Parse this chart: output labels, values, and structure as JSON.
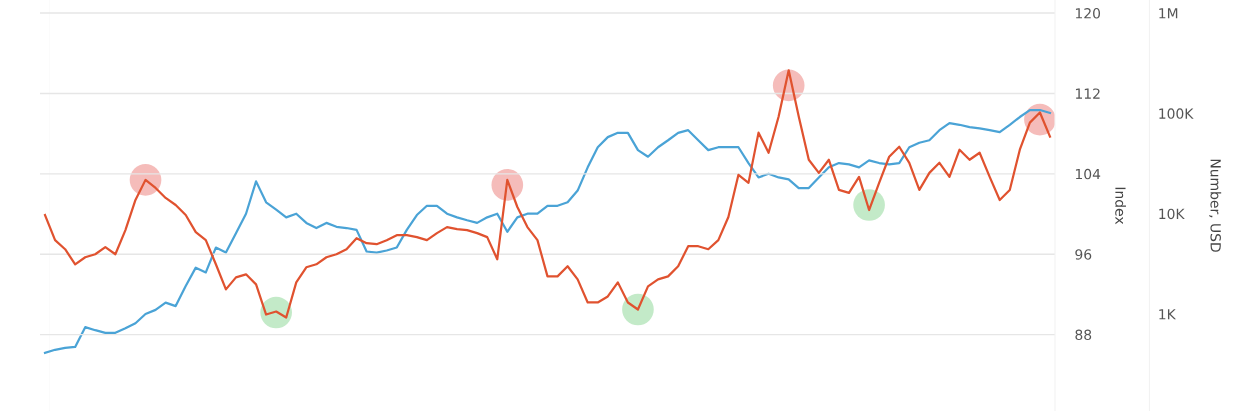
{
  "chart_data": {
    "type": "line",
    "categories": [
      null,
      null,
      null,
      null,
      null,
      null,
      null,
      null,
      null,
      null,
      null,
      null,
      null,
      null,
      null,
      null,
      null,
      null,
      null,
      null,
      null,
      null,
      null,
      null,
      null,
      null,
      null,
      null,
      null,
      null,
      null,
      null,
      null,
      null,
      null,
      null,
      null,
      null,
      null,
      null,
      null,
      null,
      null,
      null,
      null,
      null,
      null,
      null,
      null,
      null,
      null,
      null,
      null,
      null,
      null,
      null,
      null,
      null,
      null,
      null,
      null,
      null,
      null,
      null,
      null,
      null,
      null,
      null,
      null,
      null,
      null,
      null,
      null,
      null,
      null,
      null,
      null,
      null,
      null,
      null,
      null,
      null,
      null,
      null,
      null,
      null,
      null,
      null,
      null,
      null,
      null,
      null,
      null,
      null,
      null,
      null,
      null,
      null,
      null,
      null,
      null
    ],
    "ylabel": "Index",
    "y2label": "Number, USD",
    "ylim": [
      80.4,
      121.3
    ],
    "yticks": [
      88,
      96,
      104,
      112,
      120
    ],
    "y2lim": [
      108,
      1350000
    ],
    "y2ticks": [
      {
        "value": 1000,
        "label": "1K"
      },
      {
        "value": 10000,
        "label": "10K"
      },
      {
        "value": 100000,
        "label": "100K"
      },
      {
        "value": 1000000,
        "label": "1M"
      }
    ],
    "log": "y2",
    "grid": "y",
    "legend": false,
    "tick_labels": "y",
    "series": [
      {
        "color": "#4aa3d6",
        "axis": "y2",
        "values": [
          410,
          440,
          460,
          470,
          740,
          690,
          650,
          650,
          720,
          810,
          1000,
          1100,
          1300,
          1200,
          1900,
          2900,
          2600,
          4600,
          4100,
          6400,
          10000,
          21000,
          13000,
          11000,
          9200,
          10000,
          8100,
          7200,
          8100,
          7400,
          7200,
          6900,
          4200,
          4100,
          4300,
          4600,
          6900,
          9700,
          12000,
          12000,
          10000,
          9200,
          8600,
          8100,
          9200,
          10000,
          6600,
          9200,
          10000,
          10000,
          12000,
          12000,
          13000,
          17000,
          29000,
          46000,
          58000,
          64000,
          64000,
          43000,
          37000,
          46000,
          54000,
          64000,
          68000,
          54000,
          43000,
          46000,
          46000,
          46000,
          32000,
          23000,
          25000,
          23000,
          22000,
          18000,
          18000,
          23000,
          29000,
          32000,
          31000,
          29000,
          34000,
          32000,
          31000,
          32000,
          46000,
          51000,
          54000,
          68000,
          80000,
          77000,
          73000,
          71000,
          68000,
          65000,
          77000,
          92000,
          108000,
          108000,
          101000
        ]
      },
      {
        "color": "#e0522f",
        "values": [
          99.9,
          97.4,
          96.5,
          95.0,
          95.7,
          96.0,
          96.7,
          96.0,
          98.4,
          101.4,
          103.4,
          102.6,
          101.6,
          100.9,
          99.9,
          98.2,
          97.4,
          95.0,
          92.5,
          93.7,
          94.0,
          93.0,
          90.0,
          90.3,
          89.7,
          93.2,
          94.7,
          95.0,
          95.7,
          96.0,
          96.5,
          97.6,
          97.1,
          97.0,
          97.4,
          97.9,
          97.9,
          97.7,
          97.4,
          98.1,
          98.7,
          98.5,
          98.4,
          98.1,
          97.7,
          95.5,
          103.4,
          100.7,
          98.7,
          97.4,
          93.8,
          93.8,
          94.8,
          93.5,
          91.2,
          91.2,
          91.8,
          93.2,
          91.2,
          90.5,
          92.8,
          93.5,
          93.8,
          94.8,
          96.8,
          96.8,
          96.5,
          97.4,
          99.7,
          103.9,
          103.1,
          108.1,
          106.1,
          109.7,
          114.3,
          109.7,
          105.4,
          104.1,
          105.4,
          102.4,
          102.1,
          103.7,
          100.4,
          103.1,
          105.7,
          106.7,
          105.1,
          102.4,
          104.1,
          105.1,
          103.7,
          106.4,
          105.4,
          106.1,
          103.7,
          101.4,
          102.4,
          106.4,
          109.1,
          110.1,
          107.7
        ]
      },
      {
        "type": "scatter",
        "color": "#ef8f8c",
        "values": [
          null,
          null,
          null,
          null,
          null,
          null,
          null,
          null,
          null,
          null,
          103.4,
          null,
          null,
          null,
          null,
          null,
          null,
          null,
          null,
          null,
          null,
          null,
          null,
          null,
          null,
          null,
          null,
          null,
          null,
          null,
          null,
          null,
          null,
          null,
          null,
          null,
          null,
          null,
          null,
          null,
          null,
          null,
          null,
          null,
          null,
          null,
          102.9,
          null,
          null,
          null,
          null,
          null,
          null,
          null,
          null,
          null,
          null,
          null,
          null,
          null,
          null,
          null,
          null,
          null,
          null,
          null,
          null,
          null,
          null,
          null,
          null,
          null,
          null,
          null,
          112.8,
          null,
          null,
          null,
          null,
          null,
          null,
          null,
          null,
          null,
          null,
          null,
          null,
          null,
          null,
          null,
          null,
          null,
          null,
          null,
          null,
          null,
          null,
          null,
          null,
          109.4,
          null
        ]
      },
      {
        "type": "scatter",
        "color": "#9bdca4",
        "values": [
          null,
          null,
          null,
          null,
          null,
          null,
          null,
          null,
          null,
          null,
          null,
          null,
          null,
          null,
          null,
          null,
          null,
          null,
          null,
          null,
          null,
          null,
          null,
          90.2,
          null,
          null,
          null,
          null,
          null,
          null,
          null,
          null,
          null,
          null,
          null,
          null,
          null,
          null,
          null,
          null,
          null,
          null,
          null,
          null,
          null,
          null,
          null,
          null,
          null,
          null,
          null,
          null,
          null,
          null,
          null,
          null,
          null,
          null,
          null,
          90.5,
          null,
          null,
          null,
          null,
          null,
          null,
          null,
          null,
          null,
          null,
          null,
          null,
          null,
          null,
          null,
          null,
          null,
          null,
          null,
          null,
          null,
          null,
          100.9,
          null,
          null,
          null,
          null,
          null,
          null,
          null,
          null,
          null,
          null,
          null,
          null,
          null,
          null,
          null,
          null,
          null,
          null
        ]
      }
    ]
  }
}
